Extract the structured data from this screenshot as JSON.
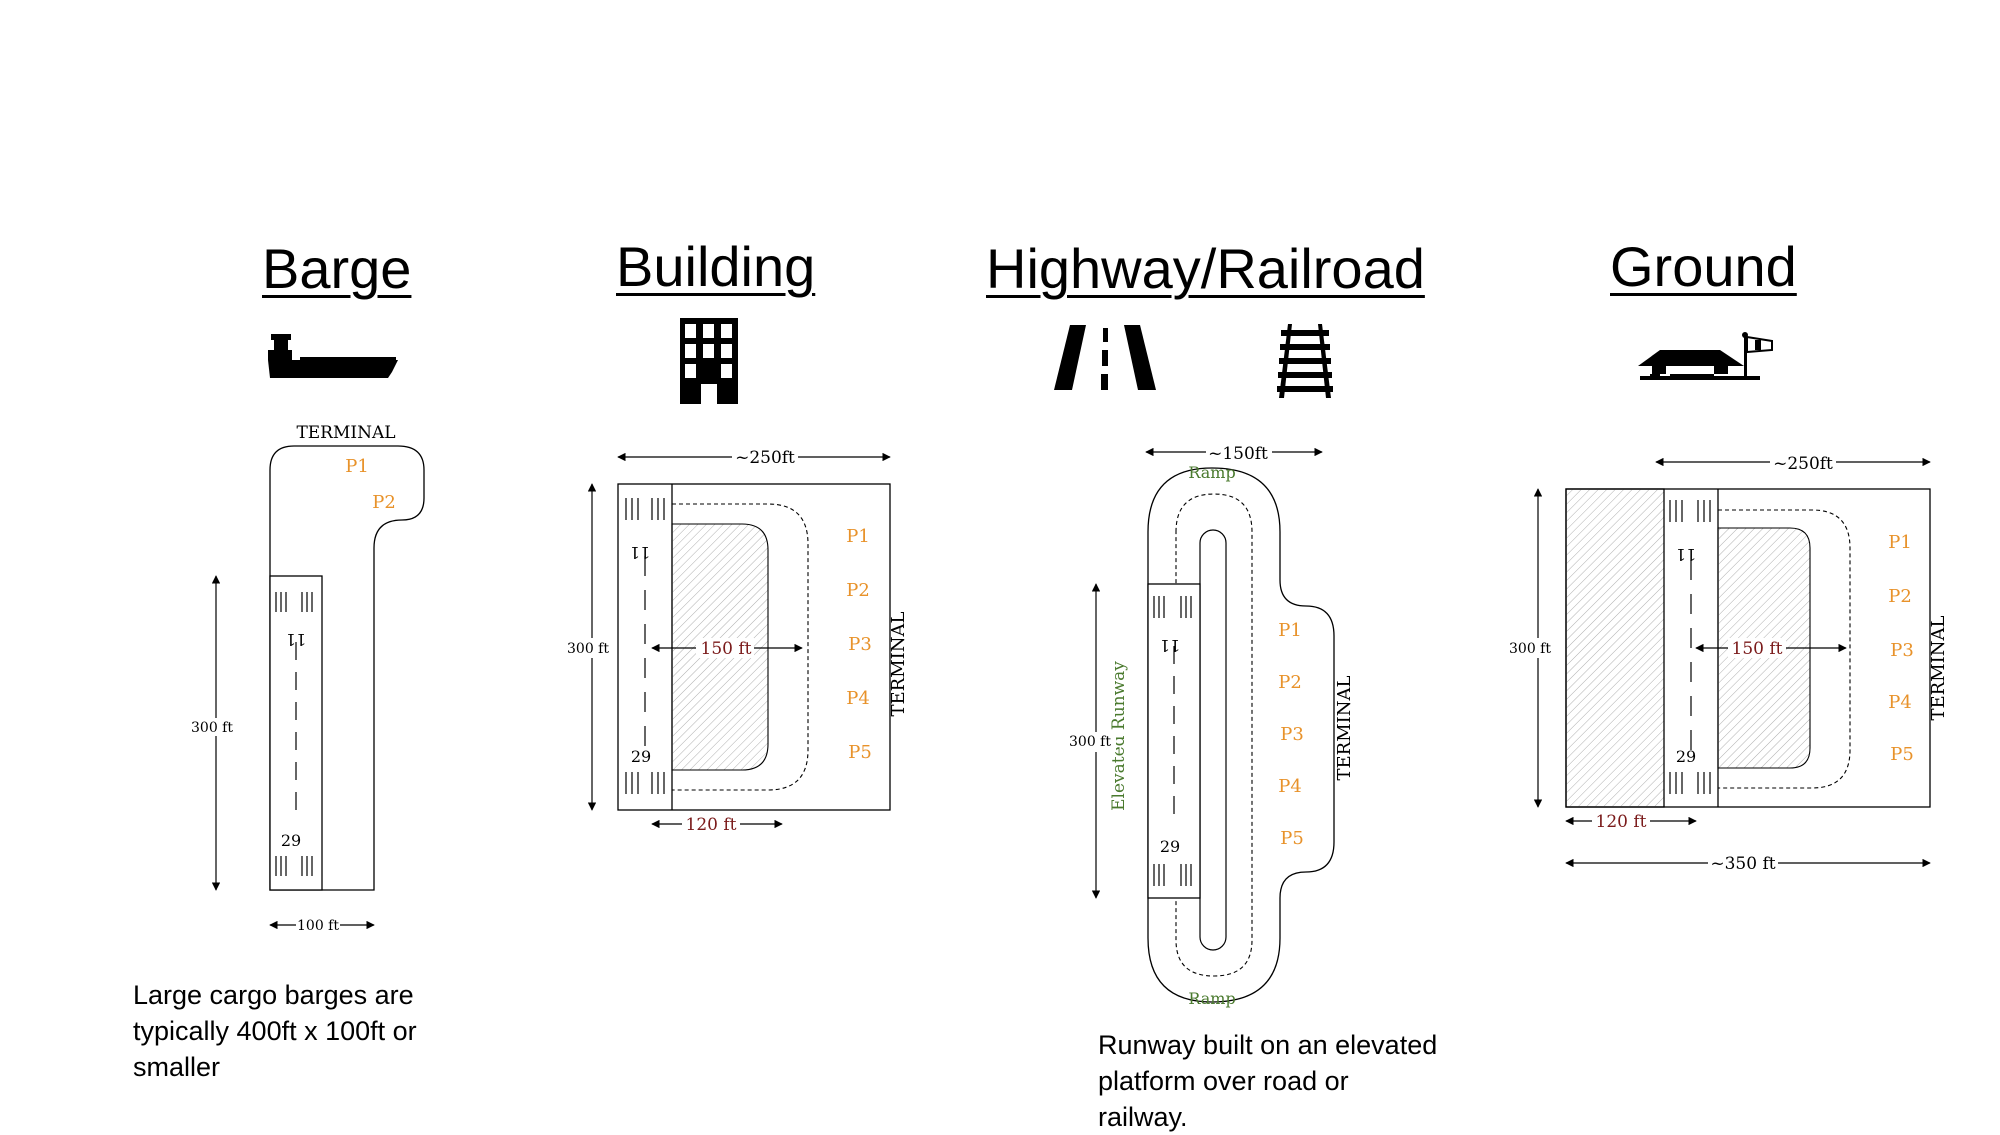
{
  "titles": {
    "barge": "Barge",
    "building": "Building",
    "highway_railroad": "Highway/Railroad",
    "ground": "Ground"
  },
  "icons": {
    "barge": "ship-icon",
    "building": "building-icon",
    "highway": "road-icon",
    "railroad": "railroad-track-icon",
    "ground": "airfield-windsock-icon"
  },
  "colors": {
    "pads": "#e8922a",
    "dimension_accent": "#7a1a1a",
    "ramp": "#4a7a2e",
    "line": "#000000"
  },
  "barge": {
    "terminal": "TERMINAL",
    "pads": [
      "P1",
      "P2"
    ],
    "runway_top": "11",
    "runway_bottom": "29",
    "height": "300 ft",
    "width": "100 ft",
    "caption": [
      "Large cargo barges are",
      "typically 400ft x 100ft or",
      "smaller"
    ]
  },
  "building": {
    "overall_width": "~250ft",
    "height": "300 ft",
    "inner_width": "150 ft",
    "runway_width": "120 ft",
    "runway_top": "11",
    "runway_bottom": "29",
    "pads": [
      "P1",
      "P2",
      "P3",
      "P4",
      "P5"
    ],
    "terminal": "TERMINAL"
  },
  "highway": {
    "overall_width": "~150ft",
    "ramp_top": "Ramp",
    "ramp_bottom": "Ramp",
    "elevated_label": "Elevated Runway",
    "height": "300 ft",
    "runway_top": "11",
    "runway_bottom": "29",
    "pads": [
      "P1",
      "P2",
      "P3",
      "P4",
      "P5"
    ],
    "terminal": "TERMINAL",
    "caption": [
      "Runway built on an elevated",
      "platform over road or",
      "railway."
    ]
  },
  "ground": {
    "overall_width": "~250ft",
    "height": "300 ft",
    "inner_width": "150 ft",
    "runway_width": "120 ft",
    "total_width": "~350 ft",
    "runway_top": "11",
    "runway_bottom": "29",
    "pads": [
      "P1",
      "P2",
      "P3",
      "P4",
      "P5"
    ],
    "terminal": "TERMINAL"
  }
}
